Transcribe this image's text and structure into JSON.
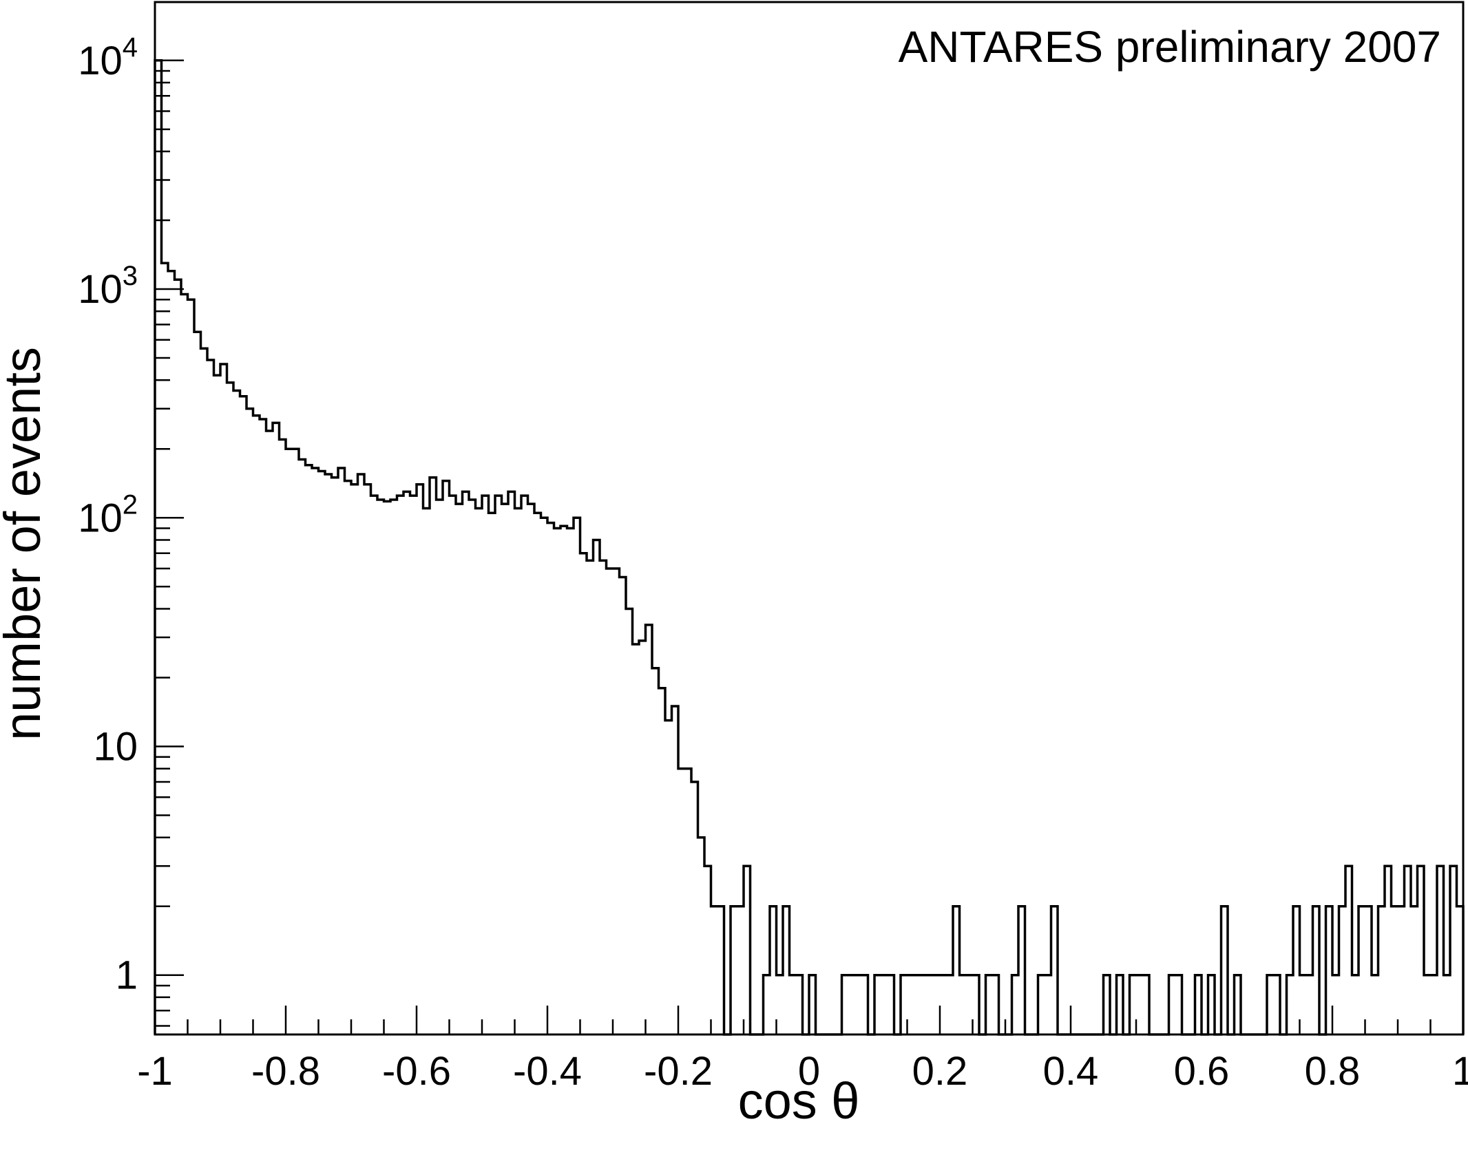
{
  "chart_data": {
    "type": "histogram",
    "annotation": "ANTARES preliminary 2007",
    "xlabel": "cos θ",
    "ylabel": "number of events",
    "xlim": [
      -1,
      1
    ],
    "ylim": [
      0.55,
      18000
    ],
    "yscale": "log",
    "grid": false,
    "x_ticks": [
      {
        "value": -1,
        "label": "-1"
      },
      {
        "value": -0.8,
        "label": "-0.8"
      },
      {
        "value": -0.6,
        "label": "-0.6"
      },
      {
        "value": -0.4,
        "label": "-0.4"
      },
      {
        "value": -0.2,
        "label": "-0.2"
      },
      {
        "value": 0,
        "label": "0"
      },
      {
        "value": 0.2,
        "label": "0.2"
      },
      {
        "value": 0.4,
        "label": "0.4"
      },
      {
        "value": 0.6,
        "label": "0.6"
      },
      {
        "value": 0.8,
        "label": "0.8"
      },
      {
        "value": 1,
        "label": "1"
      }
    ],
    "y_ticks": [
      {
        "value": 1,
        "base": "1",
        "exp": ""
      },
      {
        "value": 10,
        "base": "10",
        "exp": ""
      },
      {
        "value": 100,
        "base": "10",
        "exp": "2"
      },
      {
        "value": 1000,
        "base": "10",
        "exp": "3"
      },
      {
        "value": 10000,
        "base": "10",
        "exp": "4"
      }
    ],
    "bin_width": 0.01,
    "bin_start": -1,
    "counts": [
      10000,
      1300,
      1200,
      1100,
      950,
      900,
      650,
      550,
      490,
      420,
      470,
      390,
      360,
      340,
      300,
      280,
      270,
      240,
      260,
      220,
      200,
      200,
      180,
      170,
      165,
      160,
      155,
      150,
      165,
      145,
      140,
      155,
      140,
      125,
      120,
      118,
      120,
      125,
      130,
      125,
      140,
      110,
      150,
      120,
      145,
      125,
      115,
      130,
      120,
      110,
      125,
      105,
      125,
      115,
      130,
      110,
      125,
      115,
      105,
      100,
      95,
      90,
      92,
      90,
      100,
      70,
      65,
      80,
      65,
      60,
      60,
      55,
      40,
      28,
      29,
      34,
      22,
      18,
      13,
      15,
      8,
      8,
      7,
      4,
      3,
      2,
      2,
      0,
      2,
      2,
      3,
      0,
      0,
      1,
      2,
      1,
      2,
      1,
      1,
      0,
      1,
      0,
      0,
      0,
      0,
      1,
      1,
      1,
      1,
      0,
      1,
      1,
      1,
      0,
      1,
      1,
      1,
      1,
      1,
      1,
      1,
      1,
      2,
      1,
      1,
      1,
      0,
      1,
      1,
      0,
      0,
      1,
      2,
      0,
      0,
      1,
      1,
      2,
      0,
      0,
      0,
      0,
      0,
      0,
      0,
      1,
      0,
      1,
      0,
      1,
      1,
      1,
      0,
      0,
      0,
      1,
      1,
      0,
      0,
      1,
      0,
      1,
      0,
      2,
      0,
      1,
      0,
      0,
      0,
      0,
      1,
      1,
      0,
      1,
      2,
      1,
      1,
      2,
      0,
      2,
      1,
      2,
      3,
      1,
      2,
      2,
      1,
      2,
      3,
      2,
      2,
      3,
      2,
      3,
      1,
      1,
      3,
      1,
      3,
      2
    ]
  }
}
